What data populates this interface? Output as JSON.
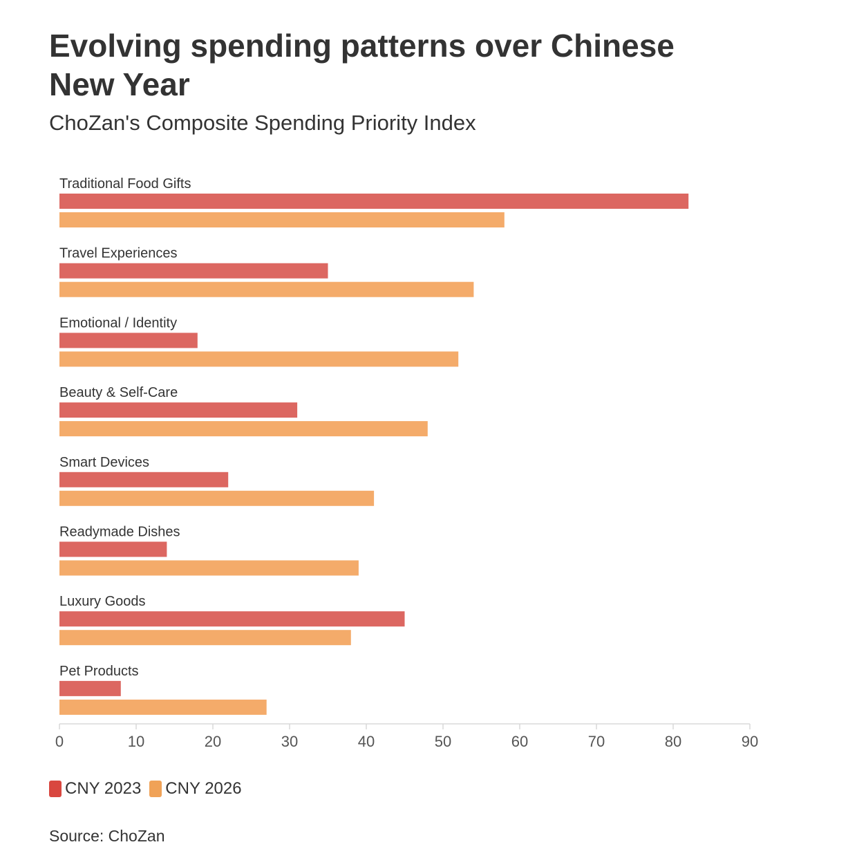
{
  "title": "Evolving spending patterns over Chinese New Year",
  "subtitle": "ChoZan's Composite Spending Priority Index",
  "source": "Source: ChoZan",
  "chart_data": {
    "type": "bar",
    "orientation": "horizontal",
    "categories": [
      "Traditional Food Gifts",
      "Travel Experiences",
      "Emotional / Identity",
      "Beauty & Self-Care",
      "Smart Devices",
      "Readymade Dishes",
      "Luxury Goods",
      "Pet Products"
    ],
    "series": [
      {
        "name": "CNY 2023",
        "color": "#dc6761",
        "values": [
          82,
          35,
          18,
          31,
          22,
          14,
          45,
          8
        ]
      },
      {
        "name": "CNY 2026",
        "color": "#f4ab6a",
        "values": [
          58,
          54,
          52,
          48,
          41,
          39,
          38,
          27
        ]
      }
    ],
    "xlim": [
      0,
      90
    ],
    "xticks": [
      0,
      10,
      20,
      30,
      40,
      50,
      60,
      70,
      80,
      90
    ],
    "grid": false,
    "legend_position": "bottom-left",
    "legend_colors": [
      "#d9473f",
      "#f0a257"
    ]
  }
}
